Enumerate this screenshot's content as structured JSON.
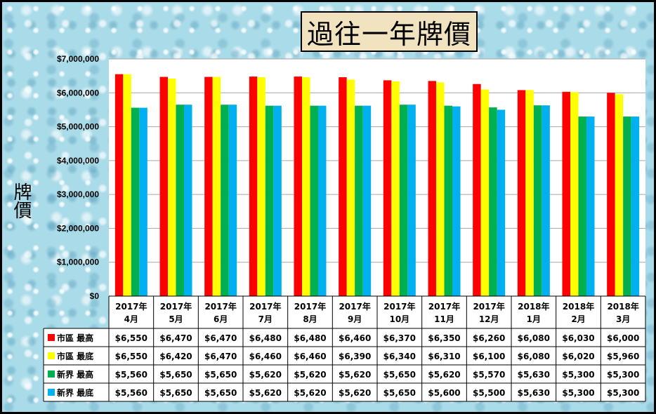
{
  "title": "過往一年牌價",
  "ylabel": "牌價",
  "colors": {
    "series": [
      "#ff0000",
      "#ffff00",
      "#00b050",
      "#00b0f0"
    ]
  },
  "chart_data": {
    "type": "bar",
    "title": "過往一年牌價",
    "ylabel": "牌價",
    "xlabel": "",
    "ylim": [
      0,
      7000000
    ],
    "yticks": [
      0,
      1000000,
      2000000,
      3000000,
      4000000,
      5000000,
      6000000,
      7000000
    ],
    "ytick_labels": [
      "$0",
      "$1,000,000",
      "$2,000,000",
      "$3,000,000",
      "$4,000,000",
      "$5,000,000",
      "$6,000,000",
      "$7,000,000"
    ],
    "grid": true,
    "legend": "data-table",
    "categories": [
      [
        "2017年",
        "4月"
      ],
      [
        "2017年",
        "5月"
      ],
      [
        "2017年",
        "6月"
      ],
      [
        "2017年",
        "7月"
      ],
      [
        "2017年",
        "8月"
      ],
      [
        "2017年",
        "9月"
      ],
      [
        "2017年",
        "10月"
      ],
      [
        "2017年",
        "11月"
      ],
      [
        "2017年",
        "12月"
      ],
      [
        "2018年",
        "1月"
      ],
      [
        "2018年",
        "2月"
      ],
      [
        "2018年",
        "3月"
      ]
    ],
    "series": [
      {
        "name": "市區 最高",
        "values": [
          6550000,
          6470000,
          6470000,
          6480000,
          6480000,
          6460000,
          6370000,
          6350000,
          6260000,
          6080000,
          6030000,
          6000000
        ],
        "table_labels": [
          "$6,550",
          "$6,470",
          "$6,470",
          "$6,480",
          "$6,480",
          "$6,460",
          "$6,370",
          "$6,350",
          "$6,260",
          "$6,080",
          "$6,030",
          "$6,000"
        ]
      },
      {
        "name": "市區 最底",
        "values": [
          6550000,
          6420000,
          6470000,
          6460000,
          6460000,
          6390000,
          6340000,
          6310000,
          6100000,
          6080000,
          6020000,
          5960000
        ],
        "table_labels": [
          "$6,550",
          "$6,420",
          "$6,470",
          "$6,460",
          "$6,460",
          "$6,390",
          "$6,340",
          "$6,310",
          "$6,100",
          "$6,080",
          "$6,020",
          "$5,960"
        ]
      },
      {
        "name": "新界 最高",
        "values": [
          5560000,
          5650000,
          5650000,
          5620000,
          5620000,
          5620000,
          5650000,
          5620000,
          5570000,
          5630000,
          5300000,
          5300000
        ],
        "table_labels": [
          "$5,560",
          "$5,650",
          "$5,650",
          "$5,620",
          "$5,620",
          "$5,620",
          "$5,650",
          "$5,620",
          "$5,570",
          "$5,630",
          "$5,300",
          "$5,300"
        ]
      },
      {
        "name": "新界 最底",
        "values": [
          5560000,
          5650000,
          5650000,
          5620000,
          5620000,
          5620000,
          5650000,
          5600000,
          5500000,
          5630000,
          5300000,
          5300000
        ],
        "table_labels": [
          "$5,560",
          "$5,650",
          "$5,650",
          "$5,620",
          "$5,620",
          "$5,620",
          "$5,650",
          "$5,600",
          "$5,500",
          "$5,630",
          "$5,300",
          "$5,300"
        ]
      }
    ]
  }
}
